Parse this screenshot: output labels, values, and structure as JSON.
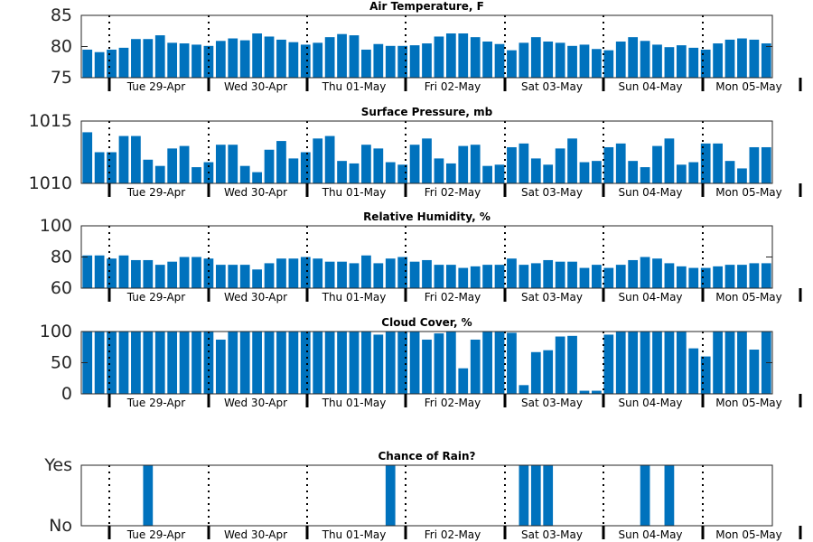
{
  "colors": {
    "bar": "#0072BD",
    "axis": "#262626",
    "text": "#000000"
  },
  "chart_data": [
    {
      "type": "bar",
      "title": "Air Temperature, F",
      "ylim": [
        75,
        85
      ],
      "yticks": [
        75,
        80,
        85
      ],
      "ytick_labels": [
        "75",
        "80",
        "85"
      ],
      "xtick_labels": [
        "Tue 29-Apr",
        "Wed 30-Apr",
        "Thu 01-May",
        "Fri 02-May",
        "Sat 03-May",
        "Sun 04-May",
        "Mon 05-May"
      ],
      "values": [
        79.5,
        79.1,
        79.5,
        79.8,
        81.2,
        81.2,
        81.8,
        80.6,
        80.5,
        80.3,
        80.1,
        80.9,
        81.3,
        81.0,
        82.1,
        81.6,
        81.1,
        80.7,
        80.3,
        80.6,
        81.5,
        82.0,
        81.8,
        79.5,
        80.4,
        80.1,
        80.1,
        80.2,
        80.5,
        81.6,
        82.1,
        82.1,
        81.5,
        80.8,
        80.4,
        79.4,
        80.6,
        81.5,
        80.8,
        80.6,
        80.1,
        80.3,
        79.6,
        79.4,
        80.8,
        81.5,
        80.9,
        80.3,
        79.9,
        80.2,
        79.8,
        79.5,
        80.5,
        81.1,
        81.3,
        81.1,
        80.5
      ]
    },
    {
      "type": "bar",
      "title": "Surface Pressure, mb",
      "ylim": [
        1010,
        1015
      ],
      "yticks": [
        1010,
        1015
      ],
      "ytick_labels": [
        "1010",
        "1015"
      ],
      "xtick_labels": [
        "Tue 29-Apr",
        "Wed 30-Apr",
        "Thu 01-May",
        "Fri 02-May",
        "Sat 03-May",
        "Sun 04-May",
        "Mon 05-May"
      ],
      "values": [
        1014.1,
        1012.5,
        1012.5,
        1013.8,
        1013.8,
        1011.9,
        1011.4,
        1012.8,
        1013.0,
        1011.3,
        1011.7,
        1013.1,
        1013.1,
        1011.4,
        1010.9,
        1012.7,
        1013.4,
        1012.0,
        1012.5,
        1013.6,
        1013.8,
        1011.8,
        1011.6,
        1013.1,
        1012.8,
        1011.7,
        1011.5,
        1013.1,
        1013.6,
        1012.0,
        1011.6,
        1013.0,
        1013.1,
        1011.4,
        1011.5,
        1012.9,
        1013.2,
        1012.0,
        1011.5,
        1012.8,
        1013.6,
        1011.7,
        1011.8,
        1012.9,
        1013.2,
        1011.8,
        1011.3,
        1013.0,
        1013.6,
        1011.5,
        1011.7,
        1013.2,
        1013.2,
        1011.8,
        1011.2,
        1012.9,
        1012.9
      ]
    },
    {
      "type": "bar",
      "title": "Relative Humidity, %",
      "ylim": [
        60,
        100
      ],
      "yticks": [
        60,
        80,
        100
      ],
      "ytick_labels": [
        "60",
        "80",
        "100"
      ],
      "xtick_labels": [
        "Tue 29-Apr",
        "Wed 30-Apr",
        "Thu 01-May",
        "Fri 02-May",
        "Sat 03-May",
        "Sun 04-May",
        "Mon 05-May"
      ],
      "values": [
        81,
        81,
        79,
        81,
        78,
        78,
        75,
        77,
        80,
        80,
        79,
        75,
        75,
        75,
        72,
        76,
        79,
        79,
        80,
        79,
        77,
        77,
        76,
        81,
        76,
        79,
        80,
        77,
        78,
        75,
        75,
        73,
        74,
        75,
        75,
        79,
        75,
        76,
        78,
        77,
        77,
        73,
        75,
        73,
        75,
        78,
        80,
        79,
        76,
        74,
        73,
        73,
        74,
        75,
        75,
        76,
        76
      ]
    },
    {
      "type": "bar",
      "title": "Cloud Cover, %",
      "ylim": [
        0,
        100
      ],
      "yticks": [
        0,
        50,
        100
      ],
      "ytick_labels": [
        "0",
        "50",
        "100"
      ],
      "xtick_labels": [
        "Tue 29-Apr",
        "Wed 30-Apr",
        "Thu 01-May",
        "Fri 02-May",
        "Sat 03-May",
        "Sun 04-May",
        "Mon 05-May"
      ],
      "values": [
        100,
        100,
        100,
        100,
        100,
        100,
        100,
        100,
        100,
        100,
        100,
        87,
        100,
        100,
        100,
        100,
        100,
        100,
        100,
        100,
        100,
        100,
        100,
        100,
        95,
        100,
        100,
        100,
        87,
        97,
        100,
        41,
        87,
        100,
        100,
        98,
        14,
        67,
        70,
        92,
        93,
        5,
        5,
        95,
        100,
        100,
        100,
        100,
        100,
        100,
        73,
        60,
        100,
        100,
        100,
        71,
        100
      ]
    },
    {
      "type": "bar",
      "title": "Chance of Rain?",
      "ylim": [
        0,
        1
      ],
      "yticks": [
        0,
        1
      ],
      "ytick_labels": [
        "No",
        "Yes"
      ],
      "xtick_labels": [
        "Tue 29-Apr",
        "Wed 30-Apr",
        "Thu 01-May",
        "Fri 02-May",
        "Sat 03-May",
        "Sun 04-May",
        "Mon 05-May"
      ],
      "values": [
        0,
        0,
        0,
        0,
        0,
        1,
        0,
        0,
        0,
        0,
        0,
        0,
        0,
        0,
        0,
        0,
        0,
        0,
        0,
        0,
        0,
        0,
        0,
        0,
        0,
        1,
        0,
        0,
        0,
        0,
        0,
        0,
        0,
        0,
        0,
        0,
        1,
        1,
        1,
        0,
        0,
        0,
        0,
        0,
        0,
        0,
        1,
        0,
        1,
        0,
        0,
        0,
        0,
        0,
        0,
        0,
        0
      ]
    }
  ]
}
